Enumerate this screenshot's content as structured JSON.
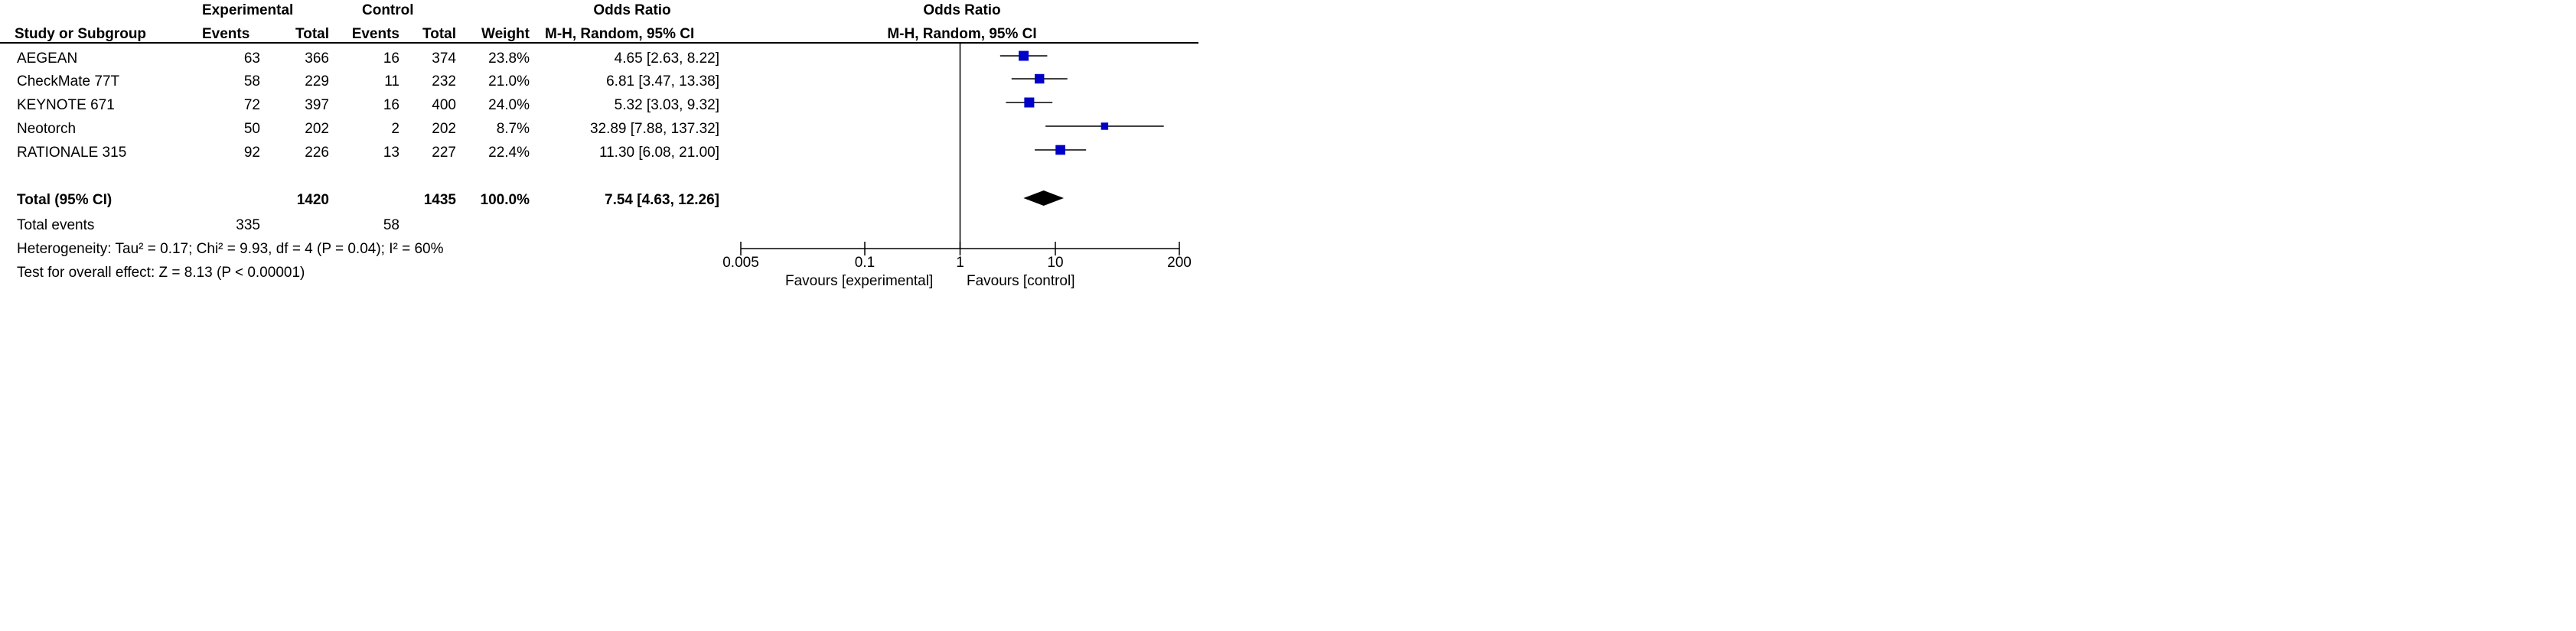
{
  "header": {
    "group_experimental": "Experimental",
    "group_control": "Control",
    "group_or_left": "Odds Ratio",
    "group_or_right": "Odds Ratio",
    "col_study": "Study or Subgroup",
    "col_exp_events": "Events",
    "col_exp_total": "Total",
    "col_ctl_events": "Events",
    "col_ctl_total": "Total",
    "col_weight": "Weight",
    "col_or_method": "M-H, Random, 95% CI",
    "plot_method": "M-H, Random, 95% CI"
  },
  "studies": [
    {
      "name": "AEGEAN",
      "exp_events": "63",
      "exp_total": "366",
      "ctl_events": "16",
      "ctl_total": "374",
      "weight": "23.8%",
      "or_text": "4.65 [2.63, 8.22]"
    },
    {
      "name": "CheckMate 77T",
      "exp_events": "58",
      "exp_total": "229",
      "ctl_events": "11",
      "ctl_total": "232",
      "weight": "21.0%",
      "or_text": "6.81 [3.47, 13.38]"
    },
    {
      "name": "KEYNOTE 671",
      "exp_events": "72",
      "exp_total": "397",
      "ctl_events": "16",
      "ctl_total": "400",
      "weight": "24.0%",
      "or_text": "5.32 [3.03, 9.32]"
    },
    {
      "name": "Neotorch",
      "exp_events": "50",
      "exp_total": "202",
      "ctl_events": "2",
      "ctl_total": "202",
      "weight": "8.7%",
      "or_text": "32.89 [7.88, 137.32]"
    },
    {
      "name": "RATIONALE 315",
      "exp_events": "92",
      "exp_total": "226",
      "ctl_events": "13",
      "ctl_total": "227",
      "weight": "22.4%",
      "or_text": "11.30 [6.08, 21.00]"
    }
  ],
  "total": {
    "label": "Total (95% CI)",
    "exp_total": "1420",
    "ctl_total": "1435",
    "weight": "100.0%",
    "or_text": "7.54 [4.63, 12.26]"
  },
  "total_events": {
    "label": "Total events",
    "exp": "335",
    "ctl": "58"
  },
  "heterogeneity": "Heterogeneity: Tau² = 0.17; Chi² = 9.93, df = 4 (P = 0.04); I² = 60%",
  "overall_effect": "Test for overall effect: Z = 8.13 (P < 0.00001)",
  "axis": {
    "left_label": "Favours [experimental]",
    "right_label": "Favours [control]"
  },
  "colors": {
    "marker": "#0000c8",
    "diamond": "#000000",
    "line": "#000000"
  },
  "chart_data": {
    "type": "forest",
    "scale": "log",
    "xlim": [
      0.005,
      200
    ],
    "ticks": [
      0.005,
      0.1,
      1,
      10,
      200
    ],
    "tick_labels": [
      "0.005",
      "0.1",
      "1",
      "10",
      "200"
    ],
    "reference": 1,
    "series": [
      {
        "study": "AEGEAN",
        "or": 4.65,
        "lo": 2.63,
        "hi": 8.22,
        "weight": 23.8
      },
      {
        "study": "CheckMate 77T",
        "or": 6.81,
        "lo": 3.47,
        "hi": 13.38,
        "weight": 21.0
      },
      {
        "study": "KEYNOTE 671",
        "or": 5.32,
        "lo": 3.03,
        "hi": 9.32,
        "weight": 24.0
      },
      {
        "study": "Neotorch",
        "or": 32.89,
        "lo": 7.88,
        "hi": 137.32,
        "weight": 8.7
      },
      {
        "study": "RATIONALE 315",
        "or": 11.3,
        "lo": 6.08,
        "hi": 21.0,
        "weight": 22.4
      }
    ],
    "pooled": {
      "or": 7.54,
      "lo": 4.63,
      "hi": 12.26
    }
  }
}
